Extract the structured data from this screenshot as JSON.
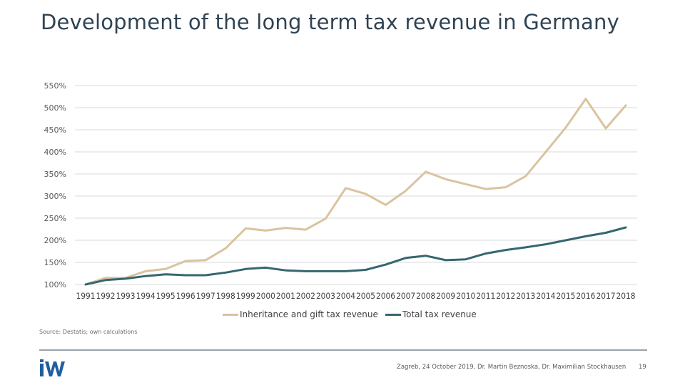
{
  "slide": {
    "title": "Development of the long term tax revenue in Germany",
    "source": "Source: Destatis; own calculations",
    "footer": "Zagreb, 24 October 2019, Dr. Martin Beznoska, Dr. Maximilian Stockhausen",
    "page_number": "19",
    "logo_text": "iW",
    "colors": {
      "title": "#2f4353",
      "logo": "#1f5fa0",
      "rule": "#9aa3aa",
      "gridline": "#d9d9d9"
    }
  },
  "chart_data": {
    "type": "line",
    "title": "",
    "xlabel": "",
    "ylabel": "",
    "ylim": [
      100,
      550
    ],
    "yticks": [
      100,
      150,
      200,
      250,
      300,
      350,
      400,
      450,
      500,
      550
    ],
    "ytick_labels": [
      "100%",
      "150%",
      "200%",
      "250%",
      "300%",
      "350%",
      "400%",
      "450%",
      "500%",
      "550%"
    ],
    "grid": true,
    "legend_position": "bottom",
    "x": [
      "1991",
      "1992",
      "1993",
      "1994",
      "1995",
      "1996",
      "1997",
      "1998",
      "1999",
      "2000",
      "2001",
      "2002",
      "2003",
      "2004",
      "2005",
      "2006",
      "2007",
      "2008",
      "2009",
      "2010",
      "2011",
      "2012",
      "2013",
      "2014",
      "2015",
      "2016",
      "2017",
      "2018"
    ],
    "series": [
      {
        "name": "Inheritance and gift tax revenue",
        "color": "#d9c4a0",
        "values": [
          100,
          115,
          115,
          130,
          135,
          153,
          155,
          182,
          227,
          222,
          228,
          224,
          249,
          318,
          305,
          280,
          312,
          355,
          338,
          327,
          316,
          320,
          345,
          400,
          455,
          520,
          453,
          505
        ]
      },
      {
        "name": "Total tax revenue",
        "color": "#35676e",
        "values": [
          100,
          110,
          113,
          119,
          123,
          121,
          121,
          127,
          135,
          138,
          132,
          130,
          130,
          130,
          133,
          145,
          160,
          165,
          155,
          157,
          170,
          178,
          184,
          191,
          200,
          209,
          217,
          229
        ]
      }
    ]
  }
}
